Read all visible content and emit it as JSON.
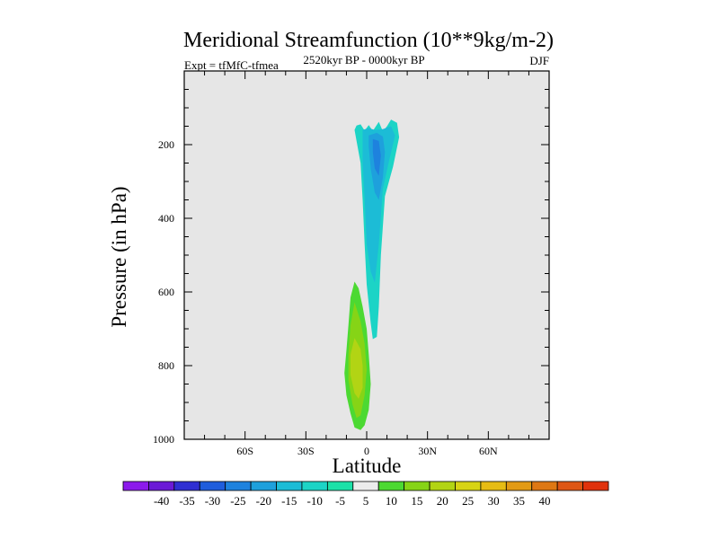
{
  "chart_data": {
    "type": "heatmap",
    "title": "Meridional Streamfunction (10**9kg/m-2)",
    "subtitle_left": "Expt = tfMfC-tfmea",
    "subtitle_center": "2520kyr BP - 0000kyr BP",
    "subtitle_right": "DJF",
    "xlabel": "Latitude",
    "ylabel": "Pressure (in hPa)",
    "xlim": [
      -90,
      90
    ],
    "ylim": [
      1000,
      0
    ],
    "x_ticks": [
      {
        "value": -60,
        "label": "60S"
      },
      {
        "value": -30,
        "label": "30S"
      },
      {
        "value": 0,
        "label": "0"
      },
      {
        "value": 30,
        "label": "30N"
      },
      {
        "value": 60,
        "label": "60N"
      }
    ],
    "y_ticks": [
      {
        "value": 200,
        "label": "200"
      },
      {
        "value": 400,
        "label": "400"
      },
      {
        "value": 600,
        "label": "600"
      },
      {
        "value": 800,
        "label": "800"
      },
      {
        "value": 1000,
        "label": "1000"
      }
    ],
    "plot_background": "#e6e6e6",
    "colorbar": {
      "colors": [
        "#8c1aeb",
        "#6b19d6",
        "#2f2fd2",
        "#1f5ddc",
        "#1e82de",
        "#1ea0dc",
        "#1cbcd6",
        "#1cd4c6",
        "#1ce1a8",
        "#ececec",
        "#4cd932",
        "#86d416",
        "#b2d414",
        "#d8d414",
        "#e6bc14",
        "#e29a14",
        "#de7814",
        "#de5614",
        "#e0320c"
      ],
      "labels": [
        "-40",
        "-35",
        "-30",
        "-25",
        "-20",
        "-15",
        "-10",
        "-5",
        "5",
        "10",
        "15",
        "20",
        "25",
        "30",
        "35",
        "40"
      ]
    },
    "regions": [
      {
        "name": "upper-negative-cell",
        "level": -5,
        "color": "#1cd4c6",
        "points": [
          [
            -3,
            145
          ],
          [
            -1,
            162
          ],
          [
            1,
            147
          ],
          [
            3,
            163
          ],
          [
            6,
            138
          ],
          [
            8,
            164
          ],
          [
            10,
            150
          ],
          [
            12,
            132
          ],
          [
            15,
            141
          ],
          [
            16,
            180
          ],
          [
            13,
            260
          ],
          [
            9,
            340
          ],
          [
            7,
            500
          ],
          [
            6,
            640
          ],
          [
            5,
            722
          ],
          [
            3,
            728
          ],
          [
            2,
            685
          ],
          [
            0,
            580
          ],
          [
            -1,
            470
          ],
          [
            -2,
            350
          ],
          [
            -3,
            250
          ],
          [
            -5,
            190
          ],
          [
            -6,
            160
          ],
          [
            -5,
            148
          ]
        ]
      },
      {
        "name": "upper-negative-cell-inner",
        "level": -10,
        "color": "#1cbcd6",
        "points": [
          [
            -2,
            160
          ],
          [
            1,
            155
          ],
          [
            4,
            160
          ],
          [
            8,
            158
          ],
          [
            12,
            150
          ],
          [
            14,
            175
          ],
          [
            11,
            245
          ],
          [
            8,
            320
          ],
          [
            6,
            470
          ],
          [
            4,
            575
          ],
          [
            2,
            545
          ],
          [
            0,
            470
          ],
          [
            -1,
            345
          ],
          [
            -2,
            245
          ]
        ]
      },
      {
        "name": "upper-negative-cell-core-1",
        "level": -15,
        "color": "#1ea0dc",
        "points": [
          [
            1,
            175
          ],
          [
            5,
            168
          ],
          [
            8,
            178
          ],
          [
            9,
            220
          ],
          [
            8,
            290
          ],
          [
            6,
            350
          ],
          [
            4,
            330
          ],
          [
            2,
            265
          ],
          [
            1,
            205
          ]
        ]
      },
      {
        "name": "upper-negative-cell-core-2",
        "level": -20,
        "color": "#1e82de",
        "points": [
          [
            3,
            185
          ],
          [
            6,
            190
          ],
          [
            7,
            230
          ],
          [
            6,
            285
          ],
          [
            4,
            265
          ],
          [
            3,
            220
          ]
        ]
      },
      {
        "name": "lower-positive-cell",
        "level": 5,
        "color": "#4cd932",
        "points": [
          [
            -6,
            572
          ],
          [
            -4,
            590
          ],
          [
            -2,
            640
          ],
          [
            0,
            700
          ],
          [
            1,
            770
          ],
          [
            2,
            850
          ],
          [
            1,
            920
          ],
          [
            -1,
            962
          ],
          [
            -3,
            975
          ],
          [
            -6,
            968
          ],
          [
            -8,
            930
          ],
          [
            -10,
            880
          ],
          [
            -11,
            820
          ],
          [
            -10,
            760
          ],
          [
            -9,
            690
          ],
          [
            -8,
            615
          ]
        ]
      },
      {
        "name": "lower-positive-cell-inner",
        "level": 10,
        "color": "#86d416",
        "points": [
          [
            -6,
            628
          ],
          [
            -3,
            680
          ],
          [
            -1,
            740
          ],
          [
            0,
            810
          ],
          [
            -1,
            880
          ],
          [
            -3,
            935
          ],
          [
            -5,
            942
          ],
          [
            -7,
            905
          ],
          [
            -9,
            840
          ],
          [
            -9,
            770
          ],
          [
            -8,
            690
          ]
        ]
      },
      {
        "name": "lower-positive-cell-core",
        "level": 15,
        "color": "#b2d414",
        "points": [
          [
            -6,
            725
          ],
          [
            -3,
            755
          ],
          [
            -2,
            800
          ],
          [
            -2,
            860
          ],
          [
            -4,
            890
          ],
          [
            -6,
            875
          ],
          [
            -8,
            825
          ],
          [
            -8,
            770
          ]
        ]
      }
    ]
  }
}
